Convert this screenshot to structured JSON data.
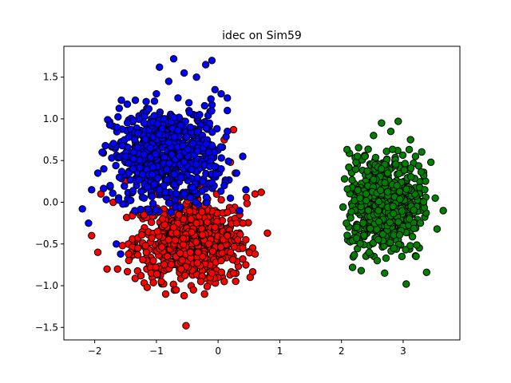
{
  "chart_data": {
    "type": "scatter",
    "title": "idec on Sim59",
    "xlabel": "",
    "ylabel": "",
    "xlim": [
      -2.5,
      3.92
    ],
    "ylim": [
      -1.65,
      1.87
    ],
    "x_ticks": [
      -2,
      -1,
      0,
      1,
      2,
      3
    ],
    "y_ticks": [
      -1.5,
      -1.0,
      -0.5,
      0.0,
      0.5,
      1.0,
      1.5
    ],
    "x_tick_labels": [
      "−2",
      "−1",
      "0",
      "1",
      "2",
      "3"
    ],
    "y_tick_labels": [
      "−1.5",
      "−1.0",
      "−0.5",
      "0.0",
      "0.5",
      "1.0",
      "1.5"
    ],
    "grid": false,
    "legend": "none",
    "marker_edge_color": "#000000",
    "series": [
      {
        "color": "#ff0000",
        "cluster": {
          "center": [
            -0.45,
            -0.45
          ],
          "spread": [
            0.45,
            0.25
          ]
        },
        "points": [
          [
            -2.05,
            -0.4
          ],
          [
            -1.95,
            -0.6
          ],
          [
            -1.8,
            -0.8
          ],
          [
            -1.63,
            -0.8
          ],
          [
            -1.55,
            -0.52
          ],
          [
            -1.45,
            -0.62
          ],
          [
            -1.3,
            -0.55
          ],
          [
            -1.25,
            -0.88
          ],
          [
            -1.15,
            -1.02
          ],
          [
            -1.05,
            -0.7
          ],
          [
            -0.98,
            -0.35
          ],
          [
            -0.92,
            -0.95
          ],
          [
            -0.85,
            -1.1
          ],
          [
            -0.8,
            -0.45
          ],
          [
            -0.72,
            -0.3
          ],
          [
            -0.68,
            -1.05
          ],
          [
            -0.6,
            -0.8
          ],
          [
            -0.55,
            -1.12
          ],
          [
            -0.52,
            -1.48
          ],
          [
            -0.45,
            -0.6
          ],
          [
            -0.4,
            -1.05
          ],
          [
            -0.35,
            -0.25
          ],
          [
            -0.28,
            -0.95
          ],
          [
            -0.22,
            -1.1
          ],
          [
            -0.15,
            -0.5
          ],
          [
            -0.1,
            -0.85
          ],
          [
            -0.05,
            -0.3
          ],
          [
            0.05,
            -0.7
          ],
          [
            0.1,
            -0.95
          ],
          [
            0.15,
            -0.4
          ],
          [
            0.2,
            -0.6
          ],
          [
            0.25,
            -0.85
          ],
          [
            0.3,
            -0.25
          ],
          [
            0.35,
            -0.15
          ],
          [
            0.4,
            -0.55
          ],
          [
            0.45,
            -0.45
          ],
          [
            0.52,
            -0.9
          ],
          [
            0.6,
            0.1
          ],
          [
            0.7,
            0.12
          ],
          [
            0.8,
            -0.37
          ],
          [
            -0.5,
            0.3
          ],
          [
            -0.3,
            0.2
          ],
          [
            0.2,
            0.48
          ],
          [
            0.28,
            0.35
          ],
          [
            0.1,
            0.75
          ],
          [
            0.25,
            0.87
          ],
          [
            -1.1,
            0.45
          ],
          [
            -1.5,
            0.25
          ],
          [
            -1.9,
            0.1
          ],
          [
            -1.7,
            0.0
          ],
          [
            -1.2,
            -0.15
          ],
          [
            -0.9,
            -0.2
          ],
          [
            0.45,
            -0.75
          ],
          [
            0.6,
            -0.62
          ]
        ]
      },
      {
        "color": "#0000ff",
        "cluster": {
          "center": [
            -0.85,
            0.55
          ],
          "spread": [
            0.45,
            0.3
          ]
        },
        "points": [
          [
            -2.2,
            -0.08
          ],
          [
            -2.1,
            -0.25
          ],
          [
            -2.05,
            0.15
          ],
          [
            -1.95,
            0.35
          ],
          [
            -1.88,
            0.6
          ],
          [
            -1.75,
            0.2
          ],
          [
            -1.65,
            -0.5
          ],
          [
            -1.58,
            -0.62
          ],
          [
            -1.5,
            0.55
          ],
          [
            -1.45,
            0.78
          ],
          [
            -1.38,
            0.4
          ],
          [
            -1.3,
            0.83
          ],
          [
            -1.2,
            0.95
          ],
          [
            -1.1,
            0.65
          ],
          [
            -1.0,
            1.3
          ],
          [
            -0.95,
            1.62
          ],
          [
            -0.88,
            1.0
          ],
          [
            -0.8,
            1.45
          ],
          [
            -0.72,
            1.72
          ],
          [
            -0.65,
            1.25
          ],
          [
            -0.6,
            0.3
          ],
          [
            -0.55,
            1.55
          ],
          [
            -0.45,
            0.9
          ],
          [
            -0.35,
            1.5
          ],
          [
            -0.3,
            1.05
          ],
          [
            -0.2,
            1.65
          ],
          [
            -0.15,
            0.6
          ],
          [
            -0.1,
            1.7
          ],
          [
            -0.05,
            1.35
          ],
          [
            0.05,
            0.4
          ],
          [
            0.1,
            0.2
          ],
          [
            0.15,
            1.1
          ],
          [
            0.2,
            0.05
          ],
          [
            0.3,
            0.35
          ],
          [
            0.35,
            -0.1
          ],
          [
            0.4,
            0.55
          ],
          [
            0.45,
            0.15
          ],
          [
            -0.55,
            0.1
          ],
          [
            -1.2,
            0.05
          ],
          [
            -1.6,
            0.3
          ],
          [
            -0.95,
            0.15
          ],
          [
            -0.25,
            0.25
          ],
          [
            0.05,
            1.3
          ],
          [
            0.15,
            1.25
          ]
        ]
      },
      {
        "color": "#008000",
        "cluster": {
          "center": [
            2.7,
            0.0
          ],
          "spread": [
            0.3,
            0.3
          ]
        },
        "points": [
          [
            2.05,
            0.28
          ],
          [
            2.08,
            -0.25
          ],
          [
            2.12,
            0.42
          ],
          [
            2.18,
            -0.78
          ],
          [
            2.25,
            -0.3
          ],
          [
            2.32,
            -0.82
          ],
          [
            2.38,
            0.55
          ],
          [
            2.45,
            -0.6
          ],
          [
            2.52,
            0.8
          ],
          [
            2.58,
            -0.7
          ],
          [
            2.65,
            0.95
          ],
          [
            2.7,
            -0.85
          ],
          [
            2.75,
            0.35
          ],
          [
            2.8,
            0.85
          ],
          [
            2.85,
            -0.55
          ],
          [
            2.92,
            0.97
          ],
          [
            2.98,
            -0.65
          ],
          [
            3.05,
            -0.98
          ],
          [
            3.12,
            0.75
          ],
          [
            3.2,
            0.55
          ],
          [
            3.28,
            -0.25
          ],
          [
            3.35,
            0.15
          ],
          [
            3.38,
            -0.84
          ],
          [
            3.45,
            0.48
          ],
          [
            3.52,
            0.05
          ],
          [
            3.55,
            -0.32
          ],
          [
            3.65,
            -0.1
          ],
          [
            2.4,
            0.1
          ],
          [
            2.6,
            -0.1
          ],
          [
            2.9,
            0.2
          ],
          [
            3.1,
            -0.2
          ],
          [
            2.3,
            0.05
          ]
        ]
      }
    ]
  }
}
